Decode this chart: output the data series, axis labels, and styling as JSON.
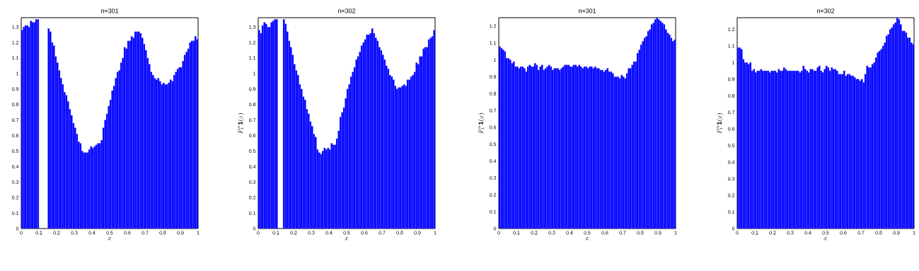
{
  "chart_data": [
    {
      "type": "histogram",
      "title": "n=301",
      "xlabel": "x",
      "color": "#0000ff",
      "bins": [
        0,
        0.01,
        0.02,
        0.03,
        0.04,
        0.05,
        0.06,
        0.07,
        0.08,
        0.09,
        0.1,
        0.11,
        0.12,
        0.13,
        0.14,
        0.15,
        0.16,
        0.17,
        0.18,
        0.19,
        0.2,
        0.21,
        0.22,
        0.23,
        0.24,
        0.25,
        0.26,
        0.27,
        0.28,
        0.29,
        0.3,
        0.31,
        0.32,
        0.33,
        0.34,
        0.35,
        0.36,
        0.37,
        0.38,
        0.39,
        0.4,
        0.41,
        0.42,
        0.43,
        0.44,
        0.45,
        0.46,
        0.47,
        0.48,
        0.49,
        0.5,
        0.51,
        0.52,
        0.53,
        0.54,
        0.55,
        0.56,
        0.57,
        0.58,
        0.59,
        0.6,
        0.61,
        0.62,
        0.63,
        0.64,
        0.65,
        0.66,
        0.67,
        0.68,
        0.69,
        0.7,
        0.71,
        0.72,
        0.73,
        0.74,
        0.75,
        0.76,
        0.77,
        0.78,
        0.79,
        0.8,
        0.81,
        0.82,
        0.83,
        0.84,
        0.85,
        0.86,
        0.87,
        0.88,
        0.89,
        0.9,
        0.91,
        0.92,
        0.93,
        0.94,
        0.95,
        0.96,
        0.97,
        0.98,
        0.99,
        1
      ],
      "values": [
        1.28,
        1.3,
        1.31,
        1.31,
        1.3,
        1.34,
        1.33,
        1.33,
        1.35,
        1.35,
        null,
        null,
        null,
        null,
        null,
        1.29,
        1.27,
        1.2,
        1.18,
        1.11,
        1.07,
        1.02,
        0.97,
        0.93,
        0.88,
        0.86,
        0.82,
        0.77,
        0.73,
        0.68,
        0.65,
        0.61,
        0.56,
        0.55,
        0.5,
        0.49,
        0.49,
        0.49,
        0.51,
        0.53,
        0.52,
        0.53,
        0.54,
        0.55,
        0.55,
        0.57,
        0.65,
        0.7,
        0.74,
        0.79,
        0.83,
        0.89,
        0.92,
        0.97,
        1.01,
        1.02,
        1.07,
        1.1,
        1.17,
        1.16,
        1.21,
        1.21,
        1.24,
        1.23,
        1.27,
        1.27,
        1.27,
        1.26,
        1.23,
        1.19,
        1.15,
        1.1,
        1.06,
        1.01,
        0.99,
        0.97,
        0.96,
        0.97,
        0.95,
        0.93,
        0.94,
        0.93,
        0.93,
        0.94,
        0.96,
        0.95,
        0.99,
        1.01,
        1.03,
        1.04,
        1.04,
        1.08,
        1.12,
        1.14,
        1.16,
        1.2,
        1.21,
        1.21,
        1.24,
        1.22
      ],
      "xlim": [
        0,
        1
      ],
      "ylim": [
        0,
        1.36
      ],
      "xticks": [
        0,
        0.1,
        0.2,
        0.3,
        0.4,
        0.5,
        0.6,
        0.7,
        0.8,
        0.9,
        1
      ],
      "yticks": [
        0,
        0.1,
        0.2,
        0.3,
        0.4,
        0.5,
        0.6,
        0.7,
        0.8,
        0.9,
        1,
        1.1,
        1.2,
        1.3
      ]
    },
    {
      "type": "histogram",
      "title": "n=302",
      "xlabel": "x",
      "ylabel": "P^{n}_{t}\\mathbf{1}(x)",
      "color": "#0000ff",
      "bins": [
        0,
        0.01,
        0.02,
        0.03,
        0.04,
        0.05,
        0.06,
        0.07,
        0.08,
        0.09,
        0.1,
        0.11,
        0.12,
        0.13,
        0.14,
        0.15,
        0.16,
        0.17,
        0.18,
        0.19,
        0.2,
        0.21,
        0.22,
        0.23,
        0.24,
        0.25,
        0.26,
        0.27,
        0.28,
        0.29,
        0.3,
        0.31,
        0.32,
        0.33,
        0.34,
        0.35,
        0.36,
        0.37,
        0.38,
        0.39,
        0.4,
        0.41,
        0.42,
        0.43,
        0.44,
        0.45,
        0.46,
        0.47,
        0.48,
        0.49,
        0.5,
        0.51,
        0.52,
        0.53,
        0.54,
        0.55,
        0.56,
        0.57,
        0.58,
        0.59,
        0.6,
        0.61,
        0.62,
        0.63,
        0.64,
        0.65,
        0.66,
        0.67,
        0.68,
        0.69,
        0.7,
        0.71,
        0.72,
        0.73,
        0.74,
        0.75,
        0.76,
        0.77,
        0.78,
        0.79,
        0.8,
        0.81,
        0.82,
        0.83,
        0.84,
        0.85,
        0.86,
        0.87,
        0.88,
        0.89,
        0.9,
        0.91,
        0.92,
        0.93,
        0.94,
        0.95,
        0.96,
        0.97,
        0.98,
        0.99,
        1
      ],
      "values": [
        1.28,
        1.26,
        1.31,
        1.33,
        1.32,
        1.3,
        1.3,
        1.33,
        1.34,
        1.35,
        1.35,
        null,
        null,
        null,
        1.35,
        1.32,
        1.27,
        1.21,
        1.17,
        1.12,
        1.06,
        1.02,
        0.99,
        0.93,
        0.9,
        0.85,
        0.83,
        0.77,
        0.74,
        0.69,
        0.66,
        0.61,
        0.59,
        0.51,
        0.49,
        0.48,
        0.5,
        0.52,
        0.51,
        0.52,
        0.51,
        0.55,
        0.54,
        0.54,
        0.58,
        0.63,
        0.72,
        0.75,
        0.78,
        0.84,
        0.9,
        0.93,
        0.98,
        1.01,
        1.04,
        1.09,
        1.11,
        1.14,
        1.18,
        1.2,
        1.22,
        1.25,
        1.25,
        1.26,
        1.29,
        1.26,
        1.23,
        1.21,
        1.17,
        1.15,
        1.12,
        1.09,
        1.05,
        1.03,
        0.99,
        0.98,
        0.96,
        0.92,
        0.9,
        0.91,
        0.91,
        0.92,
        0.93,
        0.92,
        0.96,
        0.96,
        0.98,
        0.99,
        1.01,
        1.07,
        1.06,
        1.11,
        1.11,
        1.16,
        1.17,
        1.17,
        1.22,
        1.23,
        1.24,
        1.28
      ],
      "xlim": [
        0,
        1
      ],
      "ylim": [
        0,
        1.36
      ],
      "xticks": [
        0,
        0.1,
        0.2,
        0.3,
        0.4,
        0.5,
        0.6,
        0.7,
        0.8,
        0.9,
        1
      ],
      "yticks": [
        0,
        0.1,
        0.2,
        0.3,
        0.4,
        0.5,
        0.6,
        0.7,
        0.8,
        0.9,
        1,
        1.1,
        1.2,
        1.3
      ]
    },
    {
      "type": "histogram",
      "title": "n=301",
      "xlabel": "x",
      "ylabel": "P^{n}_{t}\\mathbf{1}(x)",
      "color": "#0000ff",
      "bins": [
        0,
        0.01,
        0.02,
        0.03,
        0.04,
        0.05,
        0.06,
        0.07,
        0.08,
        0.09,
        0.1,
        0.11,
        0.12,
        0.13,
        0.14,
        0.15,
        0.16,
        0.17,
        0.18,
        0.19,
        0.2,
        0.21,
        0.22,
        0.23,
        0.24,
        0.25,
        0.26,
        0.27,
        0.28,
        0.29,
        0.3,
        0.31,
        0.32,
        0.33,
        0.34,
        0.35,
        0.36,
        0.37,
        0.38,
        0.39,
        0.4,
        0.41,
        0.42,
        0.43,
        0.44,
        0.45,
        0.46,
        0.47,
        0.48,
        0.49,
        0.5,
        0.51,
        0.52,
        0.53,
        0.54,
        0.55,
        0.56,
        0.57,
        0.58,
        0.59,
        0.6,
        0.61,
        0.62,
        0.63,
        0.64,
        0.65,
        0.66,
        0.67,
        0.68,
        0.69,
        0.7,
        0.71,
        0.72,
        0.73,
        0.74,
        0.75,
        0.76,
        0.77,
        0.78,
        0.79,
        0.8,
        0.81,
        0.82,
        0.83,
        0.84,
        0.85,
        0.86,
        0.87,
        0.88,
        0.89,
        0.9,
        0.91,
        0.92,
        0.93,
        0.94,
        0.95,
        0.96,
        0.97,
        0.98,
        0.99,
        1
      ],
      "values": [
        1.08,
        1.07,
        1.06,
        1.05,
        1.01,
        1.01,
        1.0,
        0.98,
        0.99,
        0.96,
        0.96,
        0.95,
        0.96,
        0.96,
        0.95,
        0.93,
        0.96,
        0.97,
        0.96,
        0.96,
        0.98,
        0.97,
        0.94,
        0.96,
        0.97,
        0.94,
        0.95,
        0.96,
        0.97,
        0.96,
        0.94,
        0.95,
        0.95,
        0.95,
        0.94,
        0.95,
        0.96,
        0.97,
        0.97,
        0.97,
        0.96,
        0.96,
        0.97,
        0.97,
        0.96,
        0.97,
        0.96,
        0.95,
        0.96,
        0.96,
        0.95,
        0.96,
        0.96,
        0.95,
        0.96,
        0.95,
        0.95,
        0.94,
        0.94,
        0.93,
        0.94,
        0.95,
        0.93,
        0.93,
        0.92,
        0.9,
        0.9,
        0.9,
        0.89,
        0.91,
        0.9,
        0.89,
        0.92,
        0.95,
        0.95,
        0.97,
        0.99,
        0.99,
        1.04,
        1.06,
        1.09,
        1.11,
        1.13,
        1.14,
        1.17,
        1.18,
        1.21,
        1.22,
        1.24,
        1.25,
        1.24,
        1.23,
        1.22,
        1.21,
        1.18,
        1.16,
        1.15,
        1.13,
        1.11,
        1.12
      ],
      "xlim": [
        0,
        1
      ],
      "ylim": [
        0,
        1.25
      ],
      "xticks": [
        0,
        0.1,
        0.2,
        0.3,
        0.4,
        0.5,
        0.6,
        0.7,
        0.8,
        0.9,
        1
      ],
      "yticks": [
        0,
        0.1,
        0.2,
        0.3,
        0.4,
        0.5,
        0.6,
        0.7,
        0.8,
        0.9,
        1,
        1.1,
        1.2
      ]
    },
    {
      "type": "histogram",
      "title": "n=302",
      "xlabel": "x",
      "ylabel": "P^{n}_{t}\\mathbf{1}(x)",
      "color": "#0000ff",
      "bins": [
        0,
        0.01,
        0.02,
        0.03,
        0.04,
        0.05,
        0.06,
        0.07,
        0.08,
        0.09,
        0.1,
        0.11,
        0.12,
        0.13,
        0.14,
        0.15,
        0.16,
        0.17,
        0.18,
        0.19,
        0.2,
        0.21,
        0.22,
        0.23,
        0.24,
        0.25,
        0.26,
        0.27,
        0.28,
        0.29,
        0.3,
        0.31,
        0.32,
        0.33,
        0.34,
        0.35,
        0.36,
        0.37,
        0.38,
        0.39,
        0.4,
        0.41,
        0.42,
        0.43,
        0.44,
        0.45,
        0.46,
        0.47,
        0.48,
        0.49,
        0.5,
        0.51,
        0.52,
        0.53,
        0.54,
        0.55,
        0.56,
        0.57,
        0.58,
        0.59,
        0.6,
        0.61,
        0.62,
        0.63,
        0.64,
        0.65,
        0.66,
        0.67,
        0.68,
        0.69,
        0.7,
        0.71,
        0.72,
        0.73,
        0.74,
        0.75,
        0.76,
        0.77,
        0.78,
        0.79,
        0.8,
        0.81,
        0.82,
        0.83,
        0.84,
        0.85,
        0.86,
        0.87,
        0.88,
        0.89,
        0.9,
        0.91,
        0.92,
        0.93,
        0.94,
        0.95,
        0.96,
        0.97,
        0.98,
        0.99,
        1
      ],
      "values": [
        1.09,
        1.09,
        1.08,
        1.02,
        1.0,
        1.0,
        0.99,
        1.0,
        0.95,
        0.96,
        0.94,
        0.95,
        0.95,
        0.96,
        0.95,
        0.95,
        0.95,
        0.95,
        0.94,
        0.95,
        0.95,
        0.95,
        0.94,
        0.96,
        0.95,
        0.95,
        0.97,
        0.96,
        0.95,
        0.95,
        0.95,
        0.95,
        0.95,
        0.95,
        0.95,
        0.94,
        0.95,
        0.98,
        0.96,
        0.95,
        0.94,
        0.96,
        0.96,
        0.95,
        0.95,
        0.97,
        0.98,
        0.95,
        0.94,
        0.96,
        0.98,
        0.97,
        0.95,
        0.97,
        0.96,
        0.96,
        0.95,
        0.93,
        0.93,
        0.93,
        0.95,
        0.92,
        0.93,
        0.93,
        0.92,
        0.92,
        0.91,
        0.9,
        0.9,
        0.89,
        0.9,
        0.88,
        0.93,
        0.98,
        0.97,
        0.97,
        0.99,
        1.0,
        1.03,
        1.06,
        1.07,
        1.08,
        1.1,
        1.12,
        1.16,
        1.17,
        1.2,
        1.21,
        1.23,
        1.24,
        1.27,
        1.26,
        1.23,
        1.19,
        1.19,
        1.18,
        1.15,
        1.15,
        1.12,
        1.11
      ],
      "xlim": [
        0,
        1
      ],
      "ylim": [
        0,
        1.27
      ],
      "xticks": [
        0,
        0.1,
        0.2,
        0.3,
        0.4,
        0.5,
        0.6,
        0.7,
        0.8,
        0.9,
        1
      ],
      "yticks": [
        0,
        0.1,
        0.2,
        0.3,
        0.4,
        0.5,
        0.6,
        0.7,
        0.8,
        0.9,
        1,
        1.1,
        1.2
      ]
    }
  ]
}
